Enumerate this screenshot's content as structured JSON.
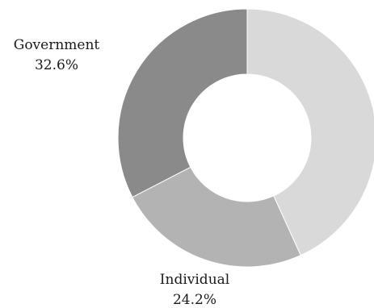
{
  "chart_data": {
    "type": "pie",
    "donut": true,
    "title": "",
    "slices": [
      {
        "name": "",
        "value": 43.2,
        "label": "",
        "value_label": "",
        "color": "#d9d9d9"
      },
      {
        "name": "Individual",
        "value": 24.2,
        "label": "Individual",
        "value_label": "24.2%",
        "color": "#b3b3b3"
      },
      {
        "name": "Government",
        "value": 32.6,
        "label": "Government",
        "value_label": "32.6%",
        "color": "#8a8a8a"
      }
    ],
    "start": "top",
    "direction": "clockwise",
    "legend": "none"
  }
}
